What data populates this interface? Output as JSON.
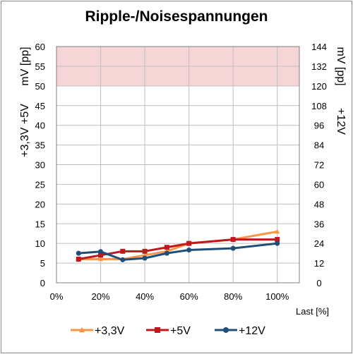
{
  "chart_data": {
    "type": "line",
    "title": "Ripple-/Noisespannungen",
    "xlabel": "Last [%]",
    "ylabel_left_top": "mV [pp]",
    "ylabel_left_bottom": "+3,3V +5V",
    "ylabel_right_top": "mV [pp]",
    "ylabel_right_bottom": "+12V",
    "x_ticks": [
      "0%",
      "20%",
      "40%",
      "60%",
      "80%",
      "100%"
    ],
    "xlim": [
      0,
      110
    ],
    "y_left_ticks": [
      "0",
      "5",
      "10",
      "15",
      "20",
      "25",
      "30",
      "35",
      "40",
      "45",
      "50",
      "55",
      "60"
    ],
    "ylim_left": [
      0,
      60
    ],
    "y_right_ticks": [
      "0",
      "12",
      "24",
      "36",
      "48",
      "60",
      "72",
      "84",
      "96",
      "108",
      "120",
      "132",
      "144"
    ],
    "ylim_right": [
      0,
      144
    ],
    "limit_band_left": [
      50,
      60
    ],
    "limit_band_color": "#f5d5d5",
    "grid": true,
    "legend_position": "bottom",
    "x": [
      10,
      20,
      30,
      40,
      50,
      60,
      80,
      100
    ],
    "series": [
      {
        "name": "+3,3V",
        "axis": "left",
        "color": "#f79646",
        "marker": "triangle",
        "values": [
          6,
          6,
          6,
          7,
          8,
          10,
          11,
          13
        ]
      },
      {
        "name": "+5V",
        "axis": "left",
        "color": "#c0181c",
        "marker": "square",
        "values": [
          6,
          7,
          8,
          8,
          9,
          10,
          11,
          11
        ]
      },
      {
        "name": "+12V",
        "axis": "right",
        "color": "#1f4e79",
        "marker": "circle",
        "values": [
          18,
          19,
          14,
          15,
          18,
          20,
          21,
          24
        ]
      }
    ]
  }
}
